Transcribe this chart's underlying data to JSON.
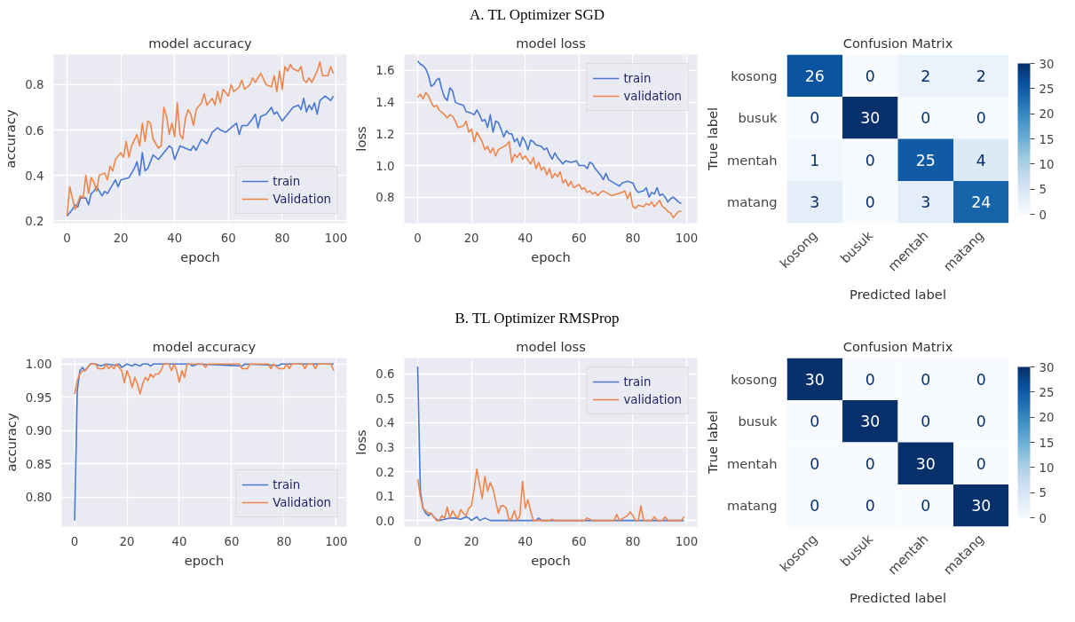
{
  "chart_data": [
    {
      "type": "line",
      "title": "model accuracy",
      "xlabel": "epoch",
      "ylabel": "accuracy",
      "annotations": [
        "A. TL Optimizer SGD"
      ],
      "xlim": [
        -4.95,
        103.95
      ],
      "ylim": [
        0.189,
        0.933
      ],
      "xticks": [
        0,
        20,
        40,
        60,
        80,
        100
      ],
      "yticks": [
        0.2,
        0.4,
        0.6,
        0.8
      ],
      "grid": true,
      "legend": "bottom right",
      "series": [
        {
          "name": "train",
          "color": "#4878d0",
          "x": [
            0,
            2,
            3,
            4,
            5,
            6,
            7,
            8,
            9,
            10,
            11,
            13,
            14,
            15,
            17,
            18,
            19,
            20,
            23,
            25,
            26,
            27,
            28,
            29,
            30,
            32,
            34,
            36,
            38,
            39,
            40,
            42,
            44,
            46,
            47,
            48,
            50,
            52,
            54,
            56,
            57,
            59,
            61,
            63,
            64,
            65,
            67,
            69,
            70,
            71,
            72,
            74,
            76,
            77,
            78,
            80,
            82,
            84,
            86,
            87,
            88,
            89,
            90,
            91,
            92,
            93,
            94,
            96,
            98,
            99
          ],
          "values": [
            0.22,
            0.25,
            0.27,
            0.26,
            0.3,
            0.3,
            0.3,
            0.27,
            0.32,
            0.33,
            0.35,
            0.31,
            0.33,
            0.32,
            0.36,
            0.38,
            0.35,
            0.38,
            0.39,
            0.43,
            0.46,
            0.4,
            0.5,
            0.42,
            0.43,
            0.49,
            0.47,
            0.5,
            0.53,
            0.52,
            0.47,
            0.53,
            0.52,
            0.51,
            0.53,
            0.51,
            0.56,
            0.54,
            0.59,
            0.61,
            0.6,
            0.59,
            0.61,
            0.63,
            0.58,
            0.62,
            0.62,
            0.65,
            0.67,
            0.61,
            0.66,
            0.67,
            0.7,
            0.67,
            0.68,
            0.64,
            0.67,
            0.7,
            0.71,
            0.69,
            0.74,
            0.68,
            0.71,
            0.69,
            0.72,
            0.67,
            0.73,
            0.75,
            0.73,
            0.75
          ]
        },
        {
          "name": "Validation",
          "color": "#ee854a",
          "x": [
            0,
            1,
            2,
            3,
            4,
            5,
            6,
            7,
            8,
            9,
            10,
            11,
            12,
            14,
            15,
            16,
            17,
            18,
            20,
            21,
            22,
            23,
            24,
            26,
            27,
            28,
            29,
            30,
            31,
            32,
            34,
            35,
            36,
            37,
            38,
            39,
            40,
            41,
            42,
            43,
            44,
            45,
            46,
            47,
            48,
            50,
            51,
            52,
            54,
            55,
            56,
            57,
            58,
            60,
            61,
            62,
            64,
            65,
            66,
            68,
            69,
            70,
            72,
            74,
            76,
            77,
            78,
            79,
            80,
            81,
            82,
            83,
            84,
            86,
            87,
            88,
            89,
            90,
            91,
            93,
            94,
            95,
            97,
            98,
            99
          ],
          "values": [
            0.22,
            0.35,
            0.3,
            0.25,
            0.28,
            0.31,
            0.3,
            0.4,
            0.32,
            0.39,
            0.37,
            0.33,
            0.4,
            0.41,
            0.38,
            0.44,
            0.42,
            0.47,
            0.5,
            0.48,
            0.55,
            0.48,
            0.53,
            0.58,
            0.53,
            0.63,
            0.55,
            0.64,
            0.63,
            0.56,
            0.52,
            0.53,
            0.7,
            0.66,
            0.58,
            0.63,
            0.57,
            0.72,
            0.58,
            0.56,
            0.65,
            0.69,
            0.67,
            0.62,
            0.69,
            0.72,
            0.76,
            0.71,
            0.74,
            0.71,
            0.77,
            0.72,
            0.78,
            0.75,
            0.8,
            0.77,
            0.79,
            0.82,
            0.78,
            0.8,
            0.83,
            0.81,
            0.85,
            0.8,
            0.79,
            0.84,
            0.77,
            0.86,
            0.78,
            0.88,
            0.86,
            0.89,
            0.87,
            0.86,
            0.88,
            0.82,
            0.81,
            0.83,
            0.81,
            0.86,
            0.9,
            0.84,
            0.84,
            0.88,
            0.85
          ]
        }
      ]
    },
    {
      "type": "line",
      "title": "model loss",
      "xlabel": "epoch",
      "ylabel": "loss",
      "xlim": [
        -4.95,
        103.95
      ],
      "ylim": [
        0.636,
        1.7
      ],
      "xticks": [
        0,
        20,
        40,
        60,
        80,
        100
      ],
      "yticks": [
        0.8,
        {
          "value": 1.0,
          "label": "1.0"
        },
        1.2,
        1.4,
        1.6
      ],
      "grid": true,
      "legend": "top right",
      "series": [
        {
          "name": "train",
          "color": "#4878d0",
          "x": [
            0,
            1,
            2,
            3,
            4,
            5,
            6,
            7,
            8,
            9,
            10,
            11,
            12,
            13,
            14,
            15,
            17,
            18,
            20,
            21,
            22,
            23,
            24,
            25,
            26,
            27,
            28,
            29,
            30,
            31,
            32,
            33,
            34,
            35,
            36,
            37,
            38,
            39,
            40,
            41,
            42,
            43,
            44,
            46,
            47,
            48,
            49,
            50,
            51,
            52,
            54,
            55,
            57,
            59,
            60,
            62,
            63,
            64,
            65,
            66,
            68,
            69,
            70,
            71,
            73,
            75,
            76,
            78,
            80,
            81,
            82,
            84,
            85,
            86,
            87,
            88,
            89,
            90,
            91,
            92,
            93,
            94,
            95,
            97,
            98
          ],
          "values": [
            1.66,
            1.64,
            1.63,
            1.61,
            1.57,
            1.5,
            1.51,
            1.54,
            1.55,
            1.48,
            1.43,
            1.41,
            1.49,
            1.47,
            1.4,
            1.39,
            1.38,
            1.34,
            1.33,
            1.32,
            1.35,
            1.32,
            1.28,
            1.29,
            1.24,
            1.32,
            1.21,
            1.28,
            1.27,
            1.23,
            1.18,
            1.22,
            1.2,
            1.2,
            1.15,
            1.17,
            1.12,
            1.18,
            1.15,
            1.1,
            1.16,
            1.15,
            1.13,
            1.12,
            1.1,
            1.11,
            1.07,
            1.04,
            1.08,
            1.05,
            1.01,
            1.03,
            1.02,
            1.03,
            1.0,
            1.0,
            0.98,
            1.02,
            1.01,
            0.98,
            0.94,
            0.91,
            0.95,
            0.91,
            0.89,
            0.87,
            0.89,
            0.9,
            0.89,
            0.85,
            0.83,
            0.84,
            0.86,
            0.8,
            0.83,
            0.82,
            0.86,
            0.81,
            0.82,
            0.8,
            0.77,
            0.79,
            0.8,
            0.77,
            0.76
          ]
        },
        {
          "name": "validation",
          "color": "#ee854a",
          "x": [
            0,
            1,
            2,
            3,
            4,
            5,
            6,
            7,
            8,
            10,
            11,
            12,
            13,
            14,
            15,
            17,
            18,
            19,
            20,
            21,
            22,
            23,
            24,
            25,
            26,
            27,
            28,
            29,
            30,
            32,
            33,
            34,
            35,
            36,
            37,
            38,
            39,
            40,
            42,
            43,
            44,
            45,
            46,
            47,
            48,
            49,
            50,
            51,
            52,
            53,
            54,
            55,
            56,
            57,
            58,
            60,
            61,
            62,
            63,
            64,
            65,
            66,
            67,
            68,
            69,
            71,
            72,
            74,
            76,
            77,
            78,
            79,
            80,
            81,
            82,
            84,
            85,
            86,
            87,
            88,
            89,
            90,
            91,
            92,
            93,
            94,
            95,
            96,
            97,
            98
          ],
          "values": [
            1.43,
            1.45,
            1.42,
            1.46,
            1.44,
            1.4,
            1.37,
            1.38,
            1.35,
            1.32,
            1.3,
            1.32,
            1.31,
            1.28,
            1.24,
            1.25,
            1.28,
            1.21,
            1.23,
            1.15,
            1.21,
            1.18,
            1.15,
            1.1,
            1.12,
            1.08,
            1.11,
            1.06,
            1.1,
            1.12,
            1.13,
            1.15,
            1.02,
            1.07,
            1.05,
            1.08,
            1.04,
            1.06,
            1.01,
            1.05,
            0.98,
            1.02,
            0.97,
            0.99,
            0.94,
            0.98,
            0.92,
            0.95,
            0.93,
            0.96,
            0.89,
            0.91,
            0.87,
            0.9,
            0.86,
            0.88,
            0.85,
            0.86,
            0.83,
            0.84,
            0.82,
            0.83,
            0.81,
            0.83,
            0.84,
            0.82,
            0.81,
            0.82,
            0.83,
            0.84,
            0.79,
            0.83,
            0.74,
            0.73,
            0.75,
            0.74,
            0.76,
            0.75,
            0.77,
            0.74,
            0.76,
            0.78,
            0.74,
            0.73,
            0.71,
            0.7,
            0.67,
            0.69,
            0.71,
            0.71
          ]
        }
      ]
    },
    {
      "type": "heatmap",
      "title": "Confusion Matrix",
      "xlabel": "Predicted label",
      "ylabel": "True label",
      "categories": [
        "kosong",
        "busuk",
        "mentah",
        "matang"
      ],
      "y_categories": [
        "kosong",
        "busuk",
        "mentah",
        "matang"
      ],
      "cells": [
        [
          26,
          0,
          2,
          2
        ],
        [
          0,
          30,
          0,
          0
        ],
        [
          1,
          0,
          25,
          4
        ],
        [
          3,
          0,
          3,
          24
        ]
      ],
      "clim": [
        0,
        30
      ],
      "cticks": [
        0,
        5,
        10,
        15,
        20,
        25,
        30
      ],
      "data_labels": true
    },
    {
      "type": "line",
      "title": "model accuracy",
      "xlabel": "epoch",
      "ylabel": "accuracy",
      "annotations": [
        "B. TL Optimizer RMSProp"
      ],
      "xlim": [
        -4.95,
        103.95
      ],
      "ylim": [
        0.756,
        1.009
      ],
      "xticks": [
        0,
        20,
        40,
        60,
        80,
        100
      ],
      "yticks": [
        {
          "value": 0.8,
          "label": "0.80"
        },
        0.85,
        {
          "value": 0.9,
          "label": "0.90"
        },
        0.95,
        {
          "value": 1.0,
          "label": "1.00"
        }
      ],
      "grid": true,
      "legend": "bottom right",
      "series": [
        {
          "name": "train",
          "color": "#4878d0",
          "x": [
            0,
            1,
            2,
            3,
            4,
            5,
            6,
            8,
            10,
            12,
            16,
            17,
            18,
            20,
            22,
            23,
            25,
            26,
            28,
            29,
            30,
            44,
            45,
            47,
            64,
            65,
            78,
            79,
            99
          ],
          "values": [
            0.765,
            0.96,
            0.99,
            0.995,
            0.99,
            0.995,
            1.0,
            1.0,
            0.997,
            1.0,
            0.998,
            1.0,
            0.995,
            1.0,
            0.997,
            1.0,
            0.997,
            1.0,
            1.0,
            0.997,
            1.0,
            1.0,
            0.997,
            1.0,
            0.997,
            1.0,
            0.998,
            1.0,
            1.0
          ]
        },
        {
          "name": "Validation",
          "color": "#ee854a",
          "x": [
            0,
            1,
            2,
            3,
            4,
            5,
            6,
            8,
            9,
            11,
            12,
            13,
            14,
            15,
            16,
            18,
            19,
            20,
            21,
            22,
            23,
            24,
            25,
            26,
            27,
            28,
            29,
            30,
            31,
            32,
            33,
            34,
            36,
            37,
            38,
            39,
            40,
            41,
            42,
            43,
            49,
            50,
            51,
            63,
            64,
            66,
            67,
            74,
            75,
            76,
            78,
            80,
            81,
            82,
            83,
            87,
            88,
            89,
            91,
            92,
            93,
            98,
            99
          ],
          "values": [
            0.955,
            0.975,
            0.985,
            0.99,
            0.99,
            0.995,
            1.0,
            1.0,
            0.993,
            0.993,
            1.0,
            0.993,
            0.997,
            0.993,
            1.0,
            0.99,
            0.972,
            0.99,
            0.98,
            0.965,
            0.98,
            0.97,
            0.955,
            0.97,
            0.98,
            0.975,
            0.985,
            0.98,
            0.985,
            0.985,
            0.99,
            1.0,
            1.0,
            0.99,
            1.0,
            0.99,
            0.973,
            0.99,
            0.98,
            1.0,
            1.0,
            0.995,
            1.0,
            1.0,
            0.993,
            0.993,
            1.0,
            1.0,
            0.993,
            1.0,
            0.993,
            0.993,
            1.0,
            0.993,
            1.0,
            1.0,
            0.993,
            1.0,
            1.0,
            0.993,
            1.0,
            1.0,
            0.99
          ]
        }
      ]
    },
    {
      "type": "line",
      "title": "model loss",
      "xlabel": "epoch",
      "ylabel": "loss",
      "xlim": [
        -4.95,
        103.95
      ],
      "ylim": [
        -0.025,
        0.665
      ],
      "xticks": [
        0,
        20,
        40,
        60,
        80,
        100
      ],
      "yticks": [
        {
          "value": 0,
          "label": "0.0"
        },
        0.1,
        0.2,
        0.3,
        0.4,
        0.5,
        0.6
      ],
      "grid": true,
      "legend": "top right",
      "series": [
        {
          "name": "train",
          "color": "#4878d0",
          "x": [
            0,
            1,
            2,
            3,
            4,
            5,
            6,
            7,
            8,
            10,
            12,
            14,
            16,
            18,
            19,
            20,
            22,
            23,
            25,
            27,
            44,
            45,
            46,
            99
          ],
          "values": [
            0.63,
            0.12,
            0.05,
            0.03,
            0.02,
            0.03,
            0.015,
            0.005,
            0.0,
            0.005,
            0.01,
            0.01,
            0.005,
            0.015,
            0.01,
            0.0,
            0.015,
            0.0,
            0.01,
            0.0,
            0.0,
            0.01,
            0.0,
            0.0
          ]
        },
        {
          "name": "validation",
          "color": "#ee854a",
          "x": [
            0,
            1,
            2,
            3,
            4,
            5,
            6,
            7,
            8,
            9,
            10,
            11,
            12,
            13,
            14,
            15,
            16,
            17,
            18,
            19,
            20,
            21,
            22,
            23,
            24,
            25,
            26,
            27,
            28,
            29,
            30,
            31,
            32,
            33,
            34,
            35,
            36,
            37,
            38,
            39,
            40,
            41,
            42,
            43,
            49,
            50,
            51,
            62,
            63,
            65,
            73,
            74,
            75,
            78,
            79,
            80,
            81,
            82,
            83,
            84,
            87,
            88,
            89,
            91,
            92,
            93,
            98,
            99
          ],
          "values": [
            0.17,
            0.1,
            0.05,
            0.04,
            0.03,
            0.03,
            0.015,
            0.0,
            0.0,
            0.02,
            0.01,
            0.055,
            0.01,
            0.04,
            0.02,
            0.01,
            0.045,
            0.03,
            0.02,
            0.05,
            0.06,
            0.13,
            0.21,
            0.15,
            0.09,
            0.18,
            0.12,
            0.155,
            0.13,
            0.08,
            0.03,
            0.06,
            0.06,
            0.05,
            0.0,
            0.01,
            0.04,
            0.0,
            0.02,
            0.16,
            0.05,
            0.085,
            0.04,
            0.0,
            0.0,
            0.005,
            0.0,
            0.0,
            0.01,
            0.0,
            0.0,
            0.025,
            0.0,
            0.02,
            0.035,
            0.02,
            0.0,
            0.0,
            0.06,
            0.0,
            0.0,
            0.015,
            0.0,
            0.0,
            0.015,
            0.0,
            0.0,
            0.015
          ]
        }
      ]
    },
    {
      "type": "heatmap",
      "title": "Confusion Matrix",
      "xlabel": "Predicted label",
      "ylabel": "True label",
      "categories": [
        "kosong",
        "busuk",
        "mentah",
        "matang"
      ],
      "y_categories": [
        "kosong",
        "busuk",
        "mentah",
        "matang"
      ],
      "cells": [
        [
          30,
          0,
          0,
          0
        ],
        [
          0,
          30,
          0,
          0
        ],
        [
          0,
          0,
          30,
          0
        ],
        [
          0,
          0,
          0,
          30
        ]
      ],
      "clim": [
        0,
        30
      ],
      "cticks": [
        0,
        5,
        10,
        15,
        20,
        25,
        30
      ],
      "data_labels": true
    }
  ]
}
